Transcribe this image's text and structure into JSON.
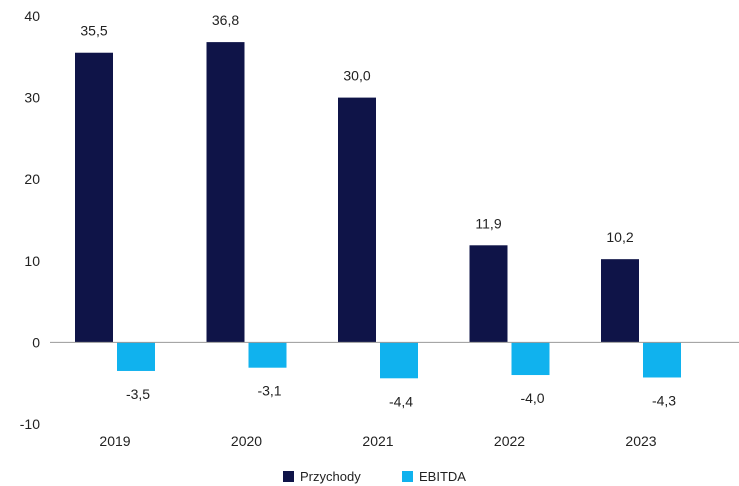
{
  "chart_data": {
    "type": "bar",
    "title": "",
    "xlabel": "",
    "ylabel": "",
    "categories": [
      "2019",
      "2020",
      "2021",
      "2022",
      "2023"
    ],
    "series": [
      {
        "name": "Przychody",
        "values": [
          35.5,
          36.8,
          30.0,
          11.9,
          10.2
        ],
        "labels": [
          "35,5",
          "36,8",
          "30,0",
          "11,9",
          "10,2"
        ],
        "color": "#0f1448"
      },
      {
        "name": "EBITDA",
        "values": [
          -3.5,
          -3.1,
          -4.4,
          -4.0,
          -4.3
        ],
        "labels": [
          "-3,5",
          "-3,1",
          "-4,4",
          "-4,0",
          "-4,3"
        ],
        "color": "#10b2ee"
      }
    ],
    "ylim": [
      -10,
      40
    ],
    "yticks": [
      "40",
      "30",
      "20",
      "10",
      "0",
      "-10"
    ],
    "grid": false,
    "legend": "bottom-center"
  }
}
